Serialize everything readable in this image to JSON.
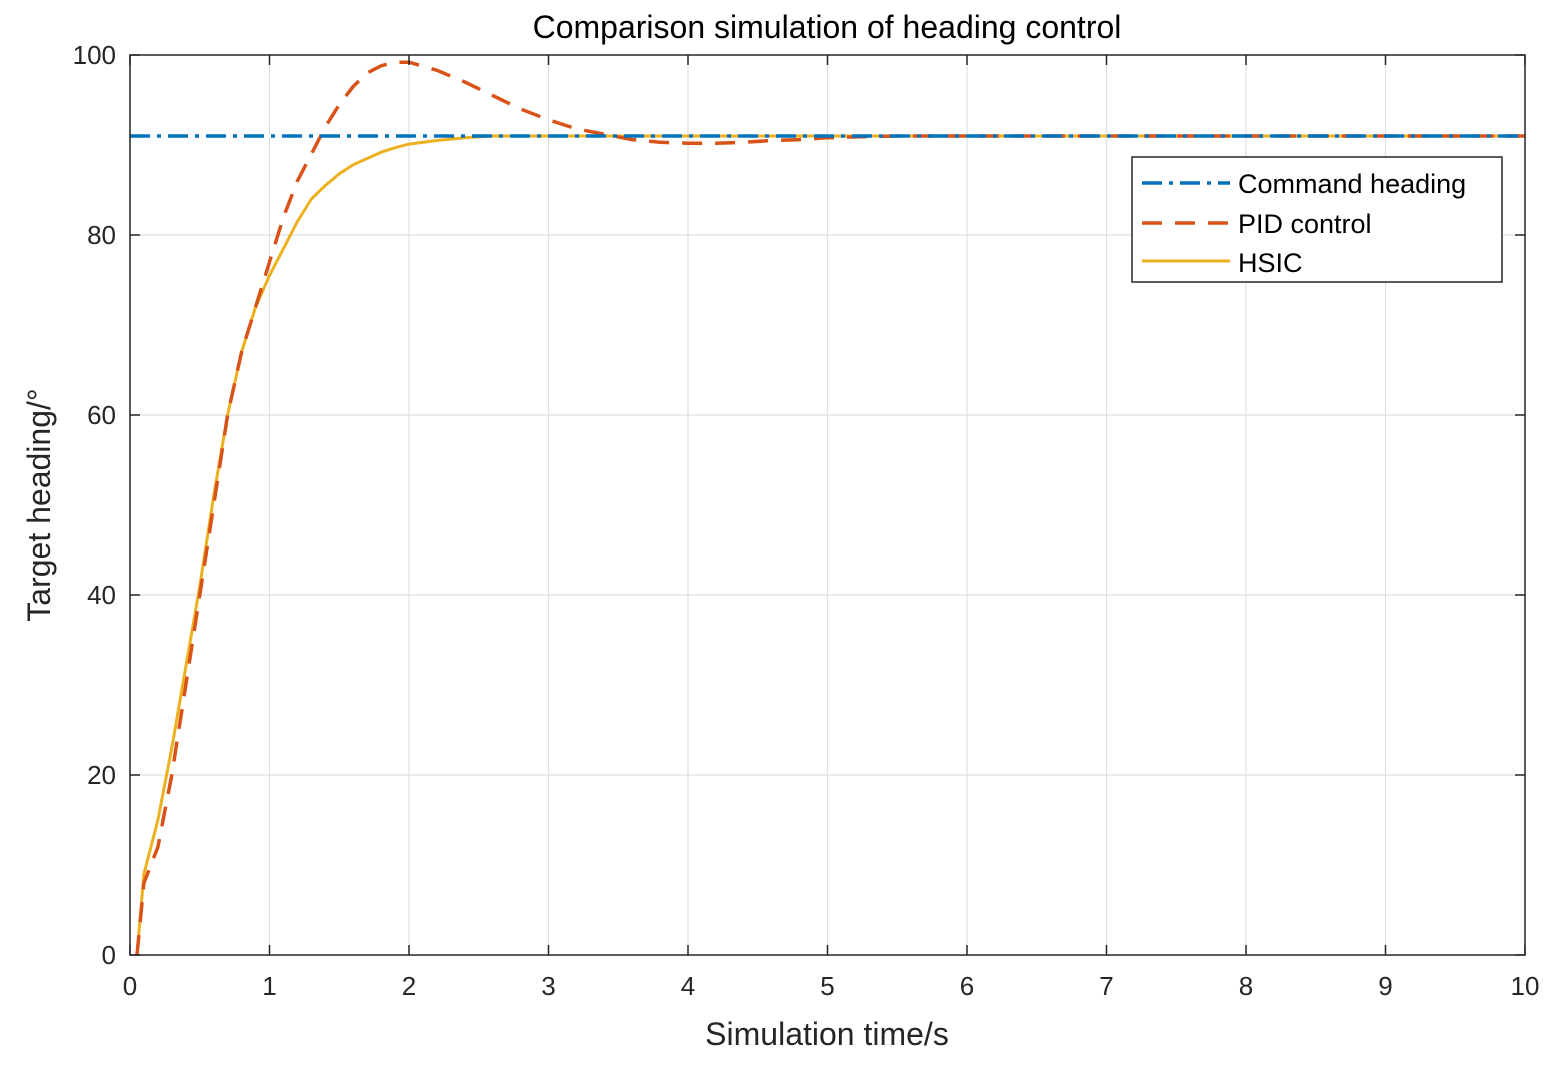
{
  "chart_data": {
    "type": "line",
    "title": "Comparison simulation of heading control",
    "xlabel": "Simulation time/s",
    "ylabel": "Target heading/°",
    "xlim": [
      0,
      10
    ],
    "ylim": [
      0,
      100
    ],
    "xticks": [
      0,
      1,
      2,
      3,
      4,
      5,
      6,
      7,
      8,
      9,
      10
    ],
    "yticks": [
      0,
      20,
      40,
      60,
      80,
      100
    ],
    "grid": true,
    "legend_position": "top-right",
    "series": [
      {
        "name": "Command heading",
        "style": "dash-dot",
        "color": "#0072BD",
        "x": [
          0,
          10
        ],
        "y": [
          91,
          91
        ]
      },
      {
        "name": "PID control",
        "style": "dashed",
        "color": "#D95319",
        "x": [
          0.05,
          0.1,
          0.2,
          0.3,
          0.4,
          0.5,
          0.6,
          0.7,
          0.8,
          0.9,
          1.0,
          1.1,
          1.2,
          1.3,
          1.4,
          1.5,
          1.6,
          1.7,
          1.8,
          1.9,
          2.0,
          2.2,
          2.4,
          2.6,
          2.8,
          3.0,
          3.2,
          3.4,
          3.6,
          3.8,
          4.0,
          4.2,
          4.4,
          4.6,
          4.8,
          5.0,
          5.2,
          5.5,
          6.0,
          6.5,
          7.0,
          8.0,
          9.0,
          10.0
        ],
        "y": [
          0,
          8,
          12,
          20,
          30,
          40,
          50,
          60,
          67,
          72,
          77,
          82,
          86,
          89,
          92,
          94.5,
          96.5,
          98,
          98.8,
          99.2,
          99.2,
          98.3,
          97,
          95.5,
          94,
          92.8,
          91.8,
          91.2,
          90.6,
          90.3,
          90.2,
          90.2,
          90.3,
          90.5,
          90.6,
          90.8,
          90.9,
          91,
          91,
          91,
          91,
          91,
          91,
          91
        ]
      },
      {
        "name": "HSIC",
        "style": "solid",
        "color": "#EDB120",
        "x": [
          0.05,
          0.1,
          0.2,
          0.3,
          0.4,
          0.5,
          0.6,
          0.7,
          0.8,
          0.9,
          1.0,
          1.1,
          1.2,
          1.3,
          1.4,
          1.5,
          1.6,
          1.7,
          1.8,
          1.9,
          2.0,
          2.2,
          2.4,
          2.6,
          2.8,
          3.0,
          4.0,
          5.0,
          6.0,
          7.0,
          8.0,
          9.0,
          10.0
        ],
        "y": [
          0,
          9,
          15,
          23,
          32,
          41,
          51,
          60,
          67,
          72,
          75.5,
          78.5,
          81.5,
          84,
          85.5,
          86.8,
          87.8,
          88.5,
          89.2,
          89.7,
          90.1,
          90.5,
          90.8,
          91,
          91,
          91,
          91,
          91,
          91,
          91,
          91,
          91,
          91
        ]
      }
    ]
  }
}
